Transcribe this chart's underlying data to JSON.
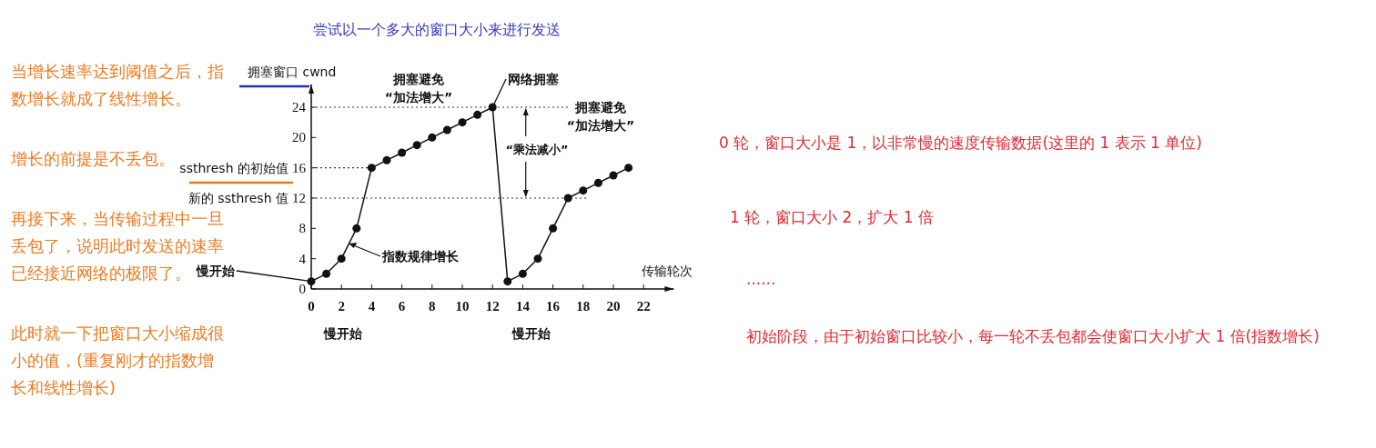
{
  "chart_data": {
    "type": "line",
    "title": "尝试以一个多大的窗口大小来进行发送",
    "xlabel": "传输轮次",
    "ylabel": "拥塞窗口 cwnd",
    "x": [
      0,
      1,
      2,
      3,
      4,
      5,
      6,
      7,
      8,
      9,
      10,
      11,
      12,
      13,
      14,
      15,
      16,
      17,
      18,
      19,
      20,
      21
    ],
    "series": [
      {
        "color": "#111111",
        "values": [
          1,
          2,
          4,
          8,
          16,
          17,
          18,
          19,
          20,
          21,
          22,
          23,
          24,
          1,
          2,
          4,
          8,
          12,
          13,
          14,
          15,
          16
        ]
      }
    ],
    "xlim": [
      0,
      24
    ],
    "ylim": [
      0,
      27
    ],
    "xticks": [
      0,
      2,
      4,
      6,
      8,
      10,
      12,
      14,
      16,
      18,
      20,
      22
    ],
    "yticks": [
      0,
      4,
      8,
      12,
      16,
      20,
      24
    ],
    "ref_lines": [
      {
        "axis": "y",
        "value": 24,
        "label": null,
        "line_style": "dotted"
      },
      {
        "axis": "y",
        "value": 16,
        "label": "ssthresh 的初始值",
        "line_style": "dotted"
      },
      {
        "axis": "y",
        "value": 12,
        "label": "新的 ssthresh 值",
        "line_style": "dotted"
      }
    ],
    "marker": "circle",
    "line_style": "solid",
    "grid": false,
    "annotations": [
      {
        "text": "慢开始",
        "x": 0,
        "y": 1
      },
      {
        "text": "指数规律增长",
        "x": 2.5,
        "y": 6
      },
      {
        "text": "网络拥塞",
        "x": 12,
        "y": 24
      },
      "拥塞避免\n“加法增大”",
      "拥塞避免\n“加法增大”",
      {
        "text": "“乘法减小”",
        "x": 14.2,
        "y": 24
      },
      "慢开始",
      "慢开始",
      "当增长速率达到阈值之后，指数增长就成了线性增长。",
      "增长的前提是不丢包。",
      "再接下来，当传输过程中一旦丢包了，说明此时发送的速率已经接近网络的极限了。",
      "此时就一下把窗口大小缩成很小的值，(重复刚才的指数增长和线性增长)",
      "0 轮，窗口大小是 1，以非常慢的速度传输数据(这里的 1 表示 1 单位)",
      "1 轮，窗口大小 2，扩大 1 倍",
      "......",
      "初始阶段，由于初始窗口比较小，每一轮不丢包都会使窗口大小扩大 1 倍(指数增长)"
    ]
  }
}
